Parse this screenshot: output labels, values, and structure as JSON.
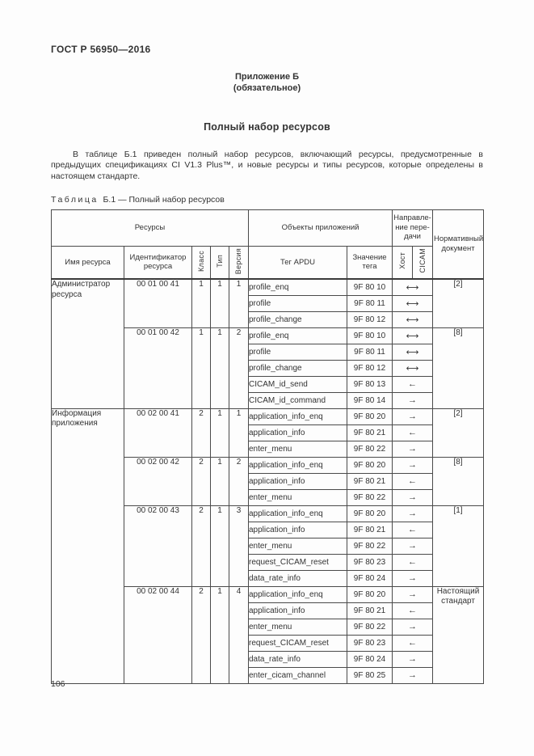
{
  "page": {
    "gost_header": "ГОСТ Р 56950—2016",
    "appendix_title": "Приложение Б",
    "appendix_subtitle": "(обязательное)",
    "section_title": "Полный набор ресурсов",
    "intro_paragraph": "В таблице Б.1 приведен полный набор ресурсов, включающий ресурсы, предусмотренные в предыдущих спецификациях CI V1.3 Plus™, и новые ресурсы и типы ресурсов, которые определены в настоящем стандарте.",
    "table_caption_label": "Таблица",
    "table_caption_text": "Б.1 — Полный набор ресурсов",
    "page_number": "106"
  },
  "table": {
    "headers": {
      "resources": "Ресурсы",
      "app_objects": "Объекты приложений",
      "direction": "Направле- ние пере- дачи",
      "normative_doc": "Нормативный документ",
      "resource_name": "Имя ресурса",
      "resource_id": "Идентификатор ресурса",
      "class": "Класс",
      "type": "Тип",
      "version": "Версия",
      "apdu_tag": "Тег APDU",
      "tag_value": "Значение тега",
      "host": "Хост",
      "cicam": "CICAM"
    },
    "groups": [
      {
        "name": "Администратор ресурса",
        "subgroups": [
          {
            "id": "00 01 00 41",
            "cls": "1",
            "typ": "1",
            "ver": "1",
            "doc": "[2]",
            "rows": [
              {
                "apdu": "profile_enq",
                "tag": "9F 80 10",
                "dir": "⟷"
              },
              {
                "apdu": "profile",
                "tag": "9F 80 11",
                "dir": "⟷"
              },
              {
                "apdu": "profile_change",
                "tag": "9F 80 12",
                "dir": "⟷"
              }
            ]
          },
          {
            "id": "00 01 00 42",
            "cls": "1",
            "typ": "1",
            "ver": "2",
            "doc": "[8]",
            "rows": [
              {
                "apdu": "profile_enq",
                "tag": "9F 80 10",
                "dir": "⟷"
              },
              {
                "apdu": "profile",
                "tag": "9F 80 11",
                "dir": "⟷"
              },
              {
                "apdu": "profile_change",
                "tag": "9F 80 12",
                "dir": "⟷"
              },
              {
                "apdu": "CICAM_id_send",
                "tag": "9F 80 13",
                "dir": "←"
              },
              {
                "apdu": "CICAM_id_command",
                "tag": "9F 80 14",
                "dir": "→"
              }
            ]
          }
        ]
      },
      {
        "name": "Информация приложения",
        "subgroups": [
          {
            "id": "00 02 00 41",
            "cls": "2",
            "typ": "1",
            "ver": "1",
            "doc": "[2]",
            "rows": [
              {
                "apdu": "application_info_enq",
                "tag": "9F 80 20",
                "dir": "→"
              },
              {
                "apdu": "application_info",
                "tag": "9F 80 21",
                "dir": "←"
              },
              {
                "apdu": "enter_menu",
                "tag": "9F 80 22",
                "dir": "→"
              }
            ]
          },
          {
            "id": "00 02 00 42",
            "cls": "2",
            "typ": "1",
            "ver": "2",
            "doc": "[8]",
            "rows": [
              {
                "apdu": "application_info_enq",
                "tag": "9F 80 20",
                "dir": "→"
              },
              {
                "apdu": "application_info",
                "tag": "9F 80 21",
                "dir": "←"
              },
              {
                "apdu": "enter_menu",
                "tag": "9F 80 22",
                "dir": "→"
              }
            ]
          },
          {
            "id": "00 02 00 43",
            "cls": "2",
            "typ": "1",
            "ver": "3",
            "doc": "[1]",
            "rows": [
              {
                "apdu": "application_info_enq",
                "tag": "9F 80 20",
                "dir": "→"
              },
              {
                "apdu": "application_info",
                "tag": "9F 80 21",
                "dir": "←"
              },
              {
                "apdu": "enter_menu",
                "tag": "9F 80 22",
                "dir": "→"
              },
              {
                "apdu": "request_CICAM_reset",
                "tag": "9F 80 23",
                "dir": "←"
              },
              {
                "apdu": "data_rate_info",
                "tag": "9F 80 24",
                "dir": "→"
              }
            ]
          },
          {
            "id": "00 02 00 44",
            "cls": "2",
            "typ": "1",
            "ver": "4",
            "doc": "Настоящий стандарт",
            "rows": [
              {
                "apdu": "application_info_enq",
                "tag": "9F 80 20",
                "dir": "→"
              },
              {
                "apdu": "application_info",
                "tag": "9F 80 21",
                "dir": "←"
              },
              {
                "apdu": "enter_menu",
                "tag": "9F 80 22",
                "dir": "→"
              },
              {
                "apdu": "request_CICAM_reset",
                "tag": "9F 80 23",
                "dir": "←"
              },
              {
                "apdu": "data_rate_info",
                "tag": "9F 80 24",
                "dir": "→"
              },
              {
                "apdu": "enter_cicam_channel",
                "tag": "9F 80 25",
                "dir": "→"
              }
            ]
          }
        ]
      }
    ]
  }
}
